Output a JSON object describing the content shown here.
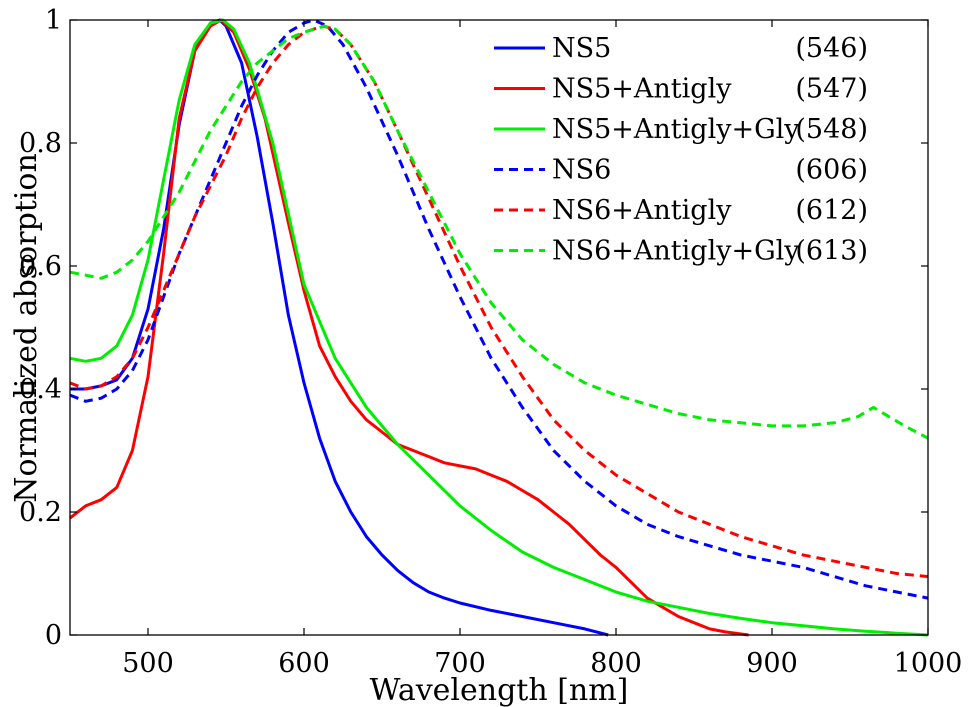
{
  "chart_data": {
    "type": "line",
    "xlabel": "Wavelength [nm]",
    "ylabel": "Normalized absorption",
    "xlim": [
      450,
      1000
    ],
    "ylim": [
      0,
      1
    ],
    "xticks": [
      500,
      600,
      700,
      800,
      900,
      1000
    ],
    "yticks": [
      0,
      0.2,
      0.4,
      0.6,
      0.8,
      1
    ],
    "ytick_labels": [
      "0",
      "0.2",
      "0.4",
      "0.6",
      "0.8",
      "1"
    ],
    "grid": false,
    "legend_position": "top-right",
    "series": [
      {
        "name": "NS5",
        "peak": "(546)",
        "color": "#0000ff",
        "dash": "solid",
        "x": [
          450,
          460,
          470,
          480,
          490,
          500,
          510,
          520,
          530,
          540,
          546,
          550,
          560,
          570,
          580,
          590,
          600,
          610,
          620,
          630,
          640,
          650,
          660,
          670,
          680,
          690,
          700,
          720,
          740,
          760,
          780,
          795
        ],
        "y": [
          0.4,
          0.4,
          0.405,
          0.415,
          0.45,
          0.53,
          0.66,
          0.83,
          0.95,
          0.995,
          1.0,
          0.99,
          0.93,
          0.81,
          0.67,
          0.52,
          0.41,
          0.32,
          0.25,
          0.2,
          0.16,
          0.13,
          0.105,
          0.085,
          0.07,
          0.06,
          0.052,
          0.04,
          0.03,
          0.02,
          0.01,
          0.0
        ]
      },
      {
        "name": "NS5+Antigly",
        "peak": "(547)",
        "color": "#ff0000",
        "dash": "solid",
        "x": [
          450,
          460,
          470,
          480,
          490,
          500,
          510,
          520,
          530,
          540,
          547,
          555,
          565,
          575,
          590,
          600,
          610,
          620,
          630,
          640,
          650,
          660,
          670,
          680,
          690,
          700,
          710,
          720,
          730,
          740,
          750,
          760,
          770,
          780,
          790,
          800,
          810,
          820,
          830,
          840,
          850,
          860,
          870,
          885
        ],
        "y": [
          0.19,
          0.21,
          0.22,
          0.24,
          0.3,
          0.42,
          0.62,
          0.84,
          0.95,
          0.99,
          1.0,
          0.98,
          0.92,
          0.84,
          0.67,
          0.56,
          0.47,
          0.42,
          0.38,
          0.35,
          0.33,
          0.31,
          0.3,
          0.29,
          0.28,
          0.275,
          0.27,
          0.26,
          0.25,
          0.235,
          0.22,
          0.2,
          0.18,
          0.155,
          0.13,
          0.11,
          0.085,
          0.06,
          0.045,
          0.03,
          0.02,
          0.01,
          0.005,
          0.0
        ]
      },
      {
        "name": "NS5+Antigly+Gly",
        "peak": "(548)",
        "color": "#00ee00",
        "dash": "solid",
        "x": [
          450,
          460,
          470,
          480,
          490,
          500,
          510,
          520,
          530,
          540,
          548,
          555,
          565,
          580,
          600,
          620,
          640,
          660,
          680,
          700,
          720,
          740,
          760,
          780,
          800,
          820,
          840,
          860,
          880,
          900,
          920,
          940,
          960,
          980,
          1000
        ],
        "y": [
          0.45,
          0.445,
          0.45,
          0.47,
          0.52,
          0.61,
          0.74,
          0.87,
          0.96,
          0.995,
          1.0,
          0.985,
          0.93,
          0.8,
          0.57,
          0.45,
          0.37,
          0.31,
          0.26,
          0.21,
          0.17,
          0.135,
          0.11,
          0.09,
          0.07,
          0.055,
          0.045,
          0.035,
          0.027,
          0.02,
          0.015,
          0.01,
          0.006,
          0.003,
          0.0
        ]
      },
      {
        "name": "NS6",
        "peak": "(606)",
        "color": "#0000ff",
        "dash": "dashed",
        "x": [
          450,
          460,
          470,
          480,
          490,
          500,
          510,
          520,
          530,
          540,
          550,
          560,
          570,
          580,
          590,
          600,
          606,
          615,
          625,
          640,
          660,
          680,
          700,
          720,
          740,
          760,
          780,
          800,
          820,
          840,
          860,
          880,
          900,
          920,
          940,
          960,
          980,
          1000
        ],
        "y": [
          0.39,
          0.38,
          0.385,
          0.4,
          0.43,
          0.48,
          0.55,
          0.62,
          0.68,
          0.74,
          0.8,
          0.86,
          0.91,
          0.95,
          0.98,
          0.995,
          1.0,
          0.99,
          0.96,
          0.89,
          0.78,
          0.66,
          0.55,
          0.45,
          0.37,
          0.3,
          0.25,
          0.21,
          0.18,
          0.16,
          0.145,
          0.13,
          0.12,
          0.11,
          0.095,
          0.08,
          0.07,
          0.06
        ]
      },
      {
        "name": "NS6+Antigly",
        "peak": "(612)",
        "color": "#ff0000",
        "dash": "dashed",
        "x": [
          450,
          460,
          470,
          480,
          490,
          500,
          510,
          520,
          530,
          540,
          550,
          560,
          570,
          580,
          590,
          600,
          612,
          620,
          630,
          645,
          660,
          680,
          700,
          720,
          740,
          760,
          780,
          800,
          820,
          840,
          860,
          880,
          900,
          920,
          940,
          960,
          980,
          1000
        ],
        "y": [
          0.41,
          0.4,
          0.405,
          0.42,
          0.45,
          0.5,
          0.56,
          0.62,
          0.68,
          0.73,
          0.78,
          0.84,
          0.89,
          0.93,
          0.96,
          0.98,
          0.99,
          0.985,
          0.96,
          0.9,
          0.82,
          0.71,
          0.6,
          0.5,
          0.42,
          0.35,
          0.3,
          0.26,
          0.23,
          0.2,
          0.18,
          0.16,
          0.145,
          0.13,
          0.12,
          0.11,
          0.1,
          0.095
        ]
      },
      {
        "name": "NS6+Antigly+Gly",
        "peak": "(613)",
        "color": "#00ee00",
        "dash": "dashed",
        "x": [
          450,
          460,
          470,
          480,
          490,
          500,
          510,
          520,
          530,
          540,
          550,
          560,
          570,
          580,
          590,
          600,
          613,
          620,
          630,
          645,
          660,
          680,
          700,
          720,
          740,
          760,
          780,
          800,
          820,
          840,
          860,
          880,
          900,
          920,
          940,
          955,
          965,
          975,
          985,
          1000
        ],
        "y": [
          0.59,
          0.585,
          0.58,
          0.59,
          0.61,
          0.64,
          0.68,
          0.72,
          0.77,
          0.82,
          0.86,
          0.9,
          0.93,
          0.95,
          0.97,
          0.98,
          0.99,
          0.985,
          0.96,
          0.9,
          0.82,
          0.72,
          0.62,
          0.54,
          0.48,
          0.44,
          0.41,
          0.39,
          0.375,
          0.36,
          0.35,
          0.345,
          0.34,
          0.34,
          0.345,
          0.355,
          0.37,
          0.355,
          0.34,
          0.32
        ]
      }
    ]
  }
}
